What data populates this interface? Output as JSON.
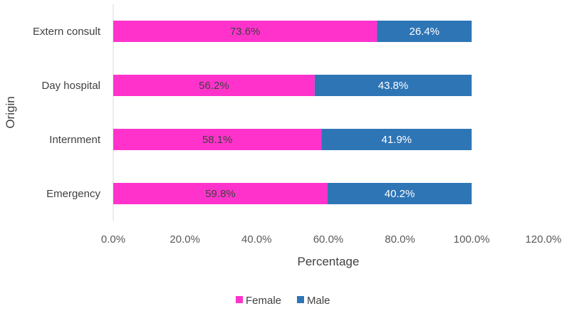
{
  "chart_data": {
    "type": "bar",
    "orientation": "horizontal",
    "stacked": true,
    "title": "",
    "xlabel": "Percentage",
    "ylabel": "Origin",
    "xlim": [
      0,
      120
    ],
    "xticks": [
      0,
      20,
      40,
      60,
      80,
      100,
      120
    ],
    "xtick_labels": [
      "0.0%",
      "20.0%",
      "40.0%",
      "60.0%",
      "80.0%",
      "100.0%",
      "120.0%"
    ],
    "categories": [
      "Extern consult",
      "Day hospital",
      "Internment",
      "Emergency"
    ],
    "series": [
      {
        "name": "Female",
        "color": "#ff33cc",
        "label_color": "#404040",
        "values": [
          73.6,
          56.2,
          58.1,
          59.8
        ],
        "labels": [
          "73.6%",
          "56.2%",
          "58.1%",
          "59.8%"
        ]
      },
      {
        "name": "Male",
        "color": "#2e75b6",
        "label_color": "#ffffff",
        "values": [
          26.4,
          43.8,
          41.9,
          40.2
        ],
        "labels": [
          "26.4%",
          "43.8%",
          "41.9%",
          "40.2%"
        ]
      }
    ],
    "legend": {
      "position": "bottom",
      "entries": [
        "Female",
        "Male"
      ]
    },
    "grid": false
  }
}
